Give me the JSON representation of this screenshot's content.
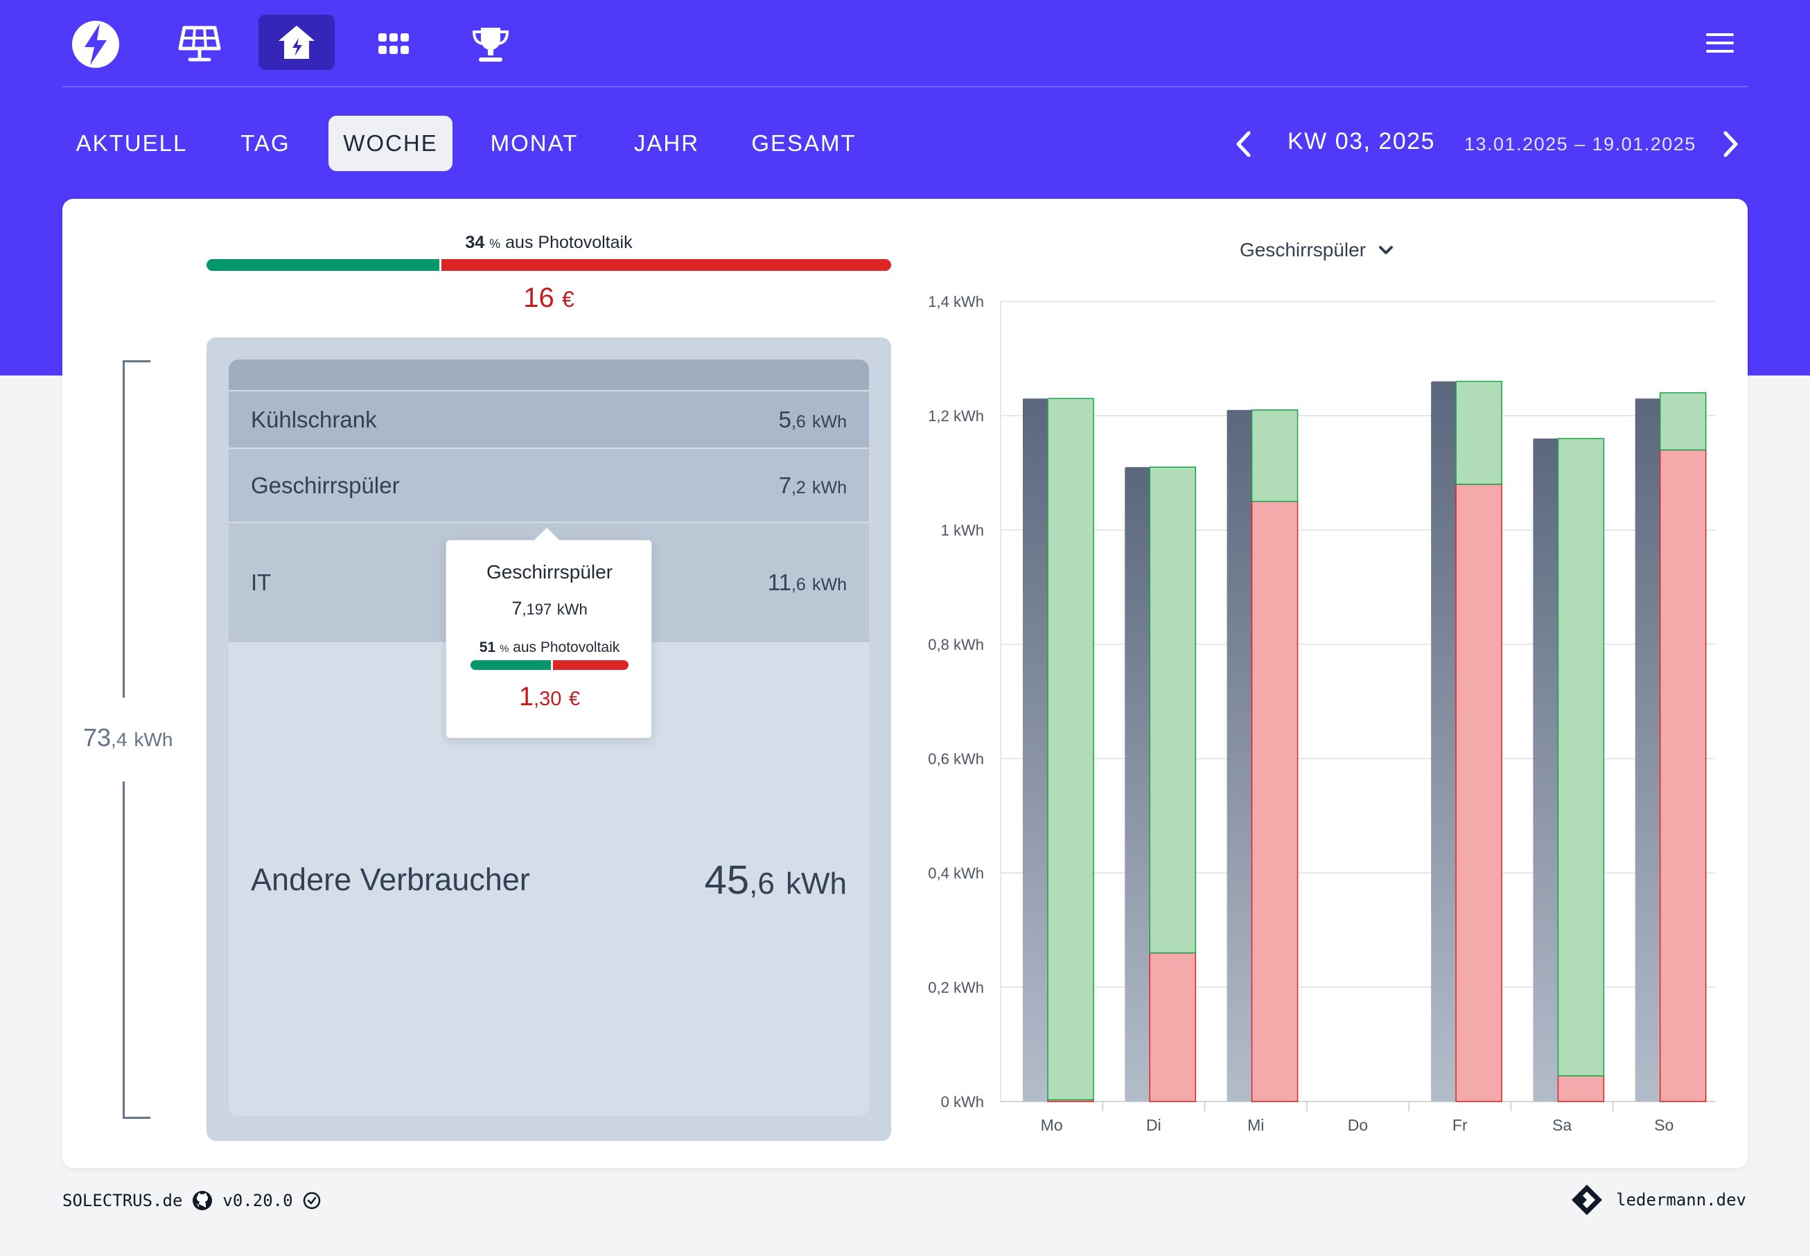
{
  "header": {
    "nav_icons": [
      "logo-bolt-icon",
      "solar-panel-icon",
      "house-icon",
      "apps-grid-icon",
      "trophy-icon"
    ],
    "active_icon": "house-icon",
    "menu_icon": "hamburger-menu-icon"
  },
  "tabs": [
    {
      "label": "AKTUELL",
      "active": false
    },
    {
      "label": "TAG",
      "active": false
    },
    {
      "label": "WOCHE",
      "active": true
    },
    {
      "label": "MONAT",
      "active": false
    },
    {
      "label": "JAHR",
      "active": false
    },
    {
      "label": "GESAMT",
      "active": false
    }
  ],
  "period": {
    "label": "KW 03, 2025",
    "range": "13.01.2025 – 19.01.2025"
  },
  "summary": {
    "pv_percent": "34",
    "pv_unit": "%",
    "pv_text": "aus Photovoltaik",
    "pv_fraction": 0.34,
    "cost_value": "16",
    "cost_unit": "€"
  },
  "total": {
    "int": "73",
    "dec": ",4",
    "unit": "kWh"
  },
  "consumers": [
    {
      "name": "Kühlschrank",
      "int": "5",
      "dec": ",6",
      "unit": "kWh"
    },
    {
      "name": "Geschirrspüler",
      "int": "7",
      "dec": ",2",
      "unit": "kWh"
    },
    {
      "name": "IT",
      "int": "11",
      "dec": ",6",
      "unit": "kWh"
    },
    {
      "name": "Andere Verbraucher",
      "int": "45",
      "dec": ",6",
      "unit": "kWh"
    }
  ],
  "tooltip": {
    "title": "Geschirrspüler",
    "kwh_int": "7",
    "kwh_dec": ",197",
    "kwh_unit": "kWh",
    "pv_percent": "51",
    "pv_unit": "%",
    "pv_text": "aus Photovoltaik",
    "pv_fraction": 0.51,
    "cost_int": "1",
    "cost_dec": ",30",
    "cost_unit": "€"
  },
  "chart_selector": {
    "label": "Geschirrspüler"
  },
  "chart_data": {
    "type": "bar",
    "categories": [
      "Mo",
      "Di",
      "Mi",
      "Do",
      "Fr",
      "Sa",
      "So"
    ],
    "ylim": [
      0,
      1.4
    ],
    "ytick_labels": [
      "0 kWh",
      "0,2 kWh",
      "0,4 kWh",
      "0,6 kWh",
      "0,8 kWh",
      "1 kWh",
      "1,2 kWh",
      "1,4 kWh"
    ],
    "yticks": [
      0,
      0.2,
      0.4,
      0.6,
      0.8,
      1.0,
      1.2,
      1.4
    ],
    "grid": true,
    "series": [
      {
        "values": [
          1.23,
          1.11,
          1.21,
          0,
          1.26,
          1.16,
          1.23
        ],
        "color": "#64748b"
      },
      {
        "values": [
          0.003,
          0.26,
          1.05,
          0,
          1.08,
          0.045,
          1.14
        ],
        "color": "#f4aaaa"
      },
      {
        "values": [
          1.227,
          0.85,
          0.16,
          0,
          0.18,
          1.115,
          0.1
        ],
        "color": "#b0dcb8"
      }
    ]
  },
  "footer": {
    "brand": "SOLECTRUS.de",
    "version": "v0.20.0",
    "credit": "ledermann.dev"
  },
  "colors": {
    "primary": "#5039f8",
    "green": "#059669",
    "red": "#dc2626",
    "cost": "#c41c1c"
  }
}
